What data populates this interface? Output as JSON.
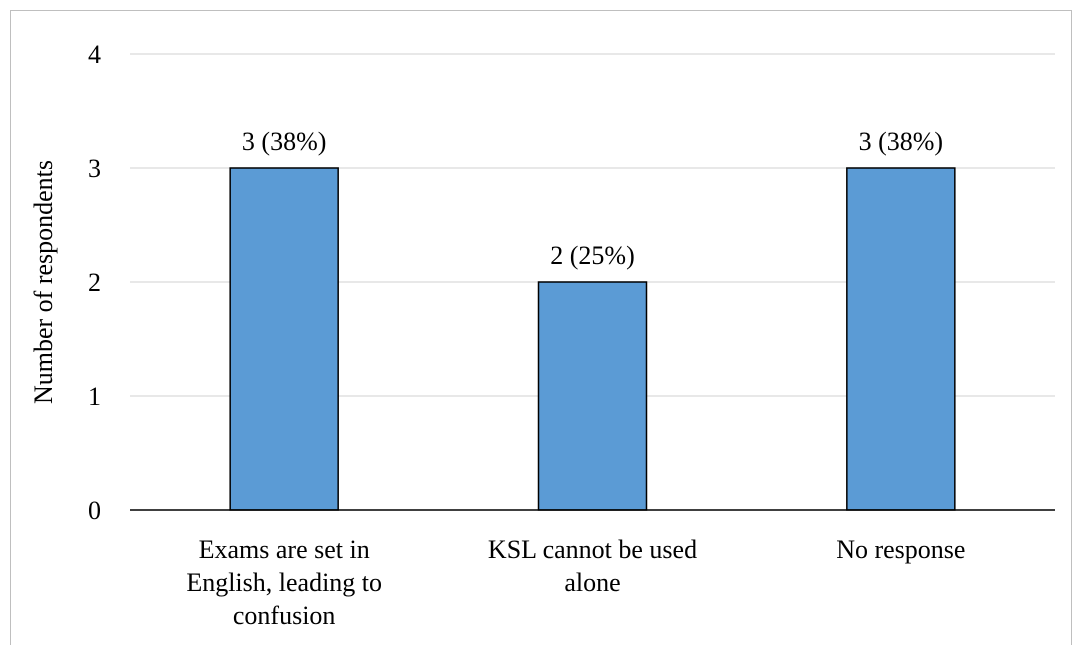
{
  "chart_data": {
    "type": "bar",
    "categories": [
      [
        "Exams are set in",
        "English, leading to",
        "confusion"
      ],
      [
        "KSL cannot be used",
        "alone"
      ],
      [
        "No response"
      ]
    ],
    "values": [
      3,
      2,
      3
    ],
    "data_labels": [
      "3 (38%)",
      "2 (25%)",
      "3 (38%)"
    ],
    "ylabel": "Number of respondents",
    "ylim": [
      0,
      4
    ],
    "yticks": [
      "0",
      "1",
      "2",
      "3",
      "4"
    ],
    "grid": true,
    "bar_color": "#5b9bd5",
    "bar_edge_color": "#000000",
    "grid_color": "#d9d9d9"
  }
}
